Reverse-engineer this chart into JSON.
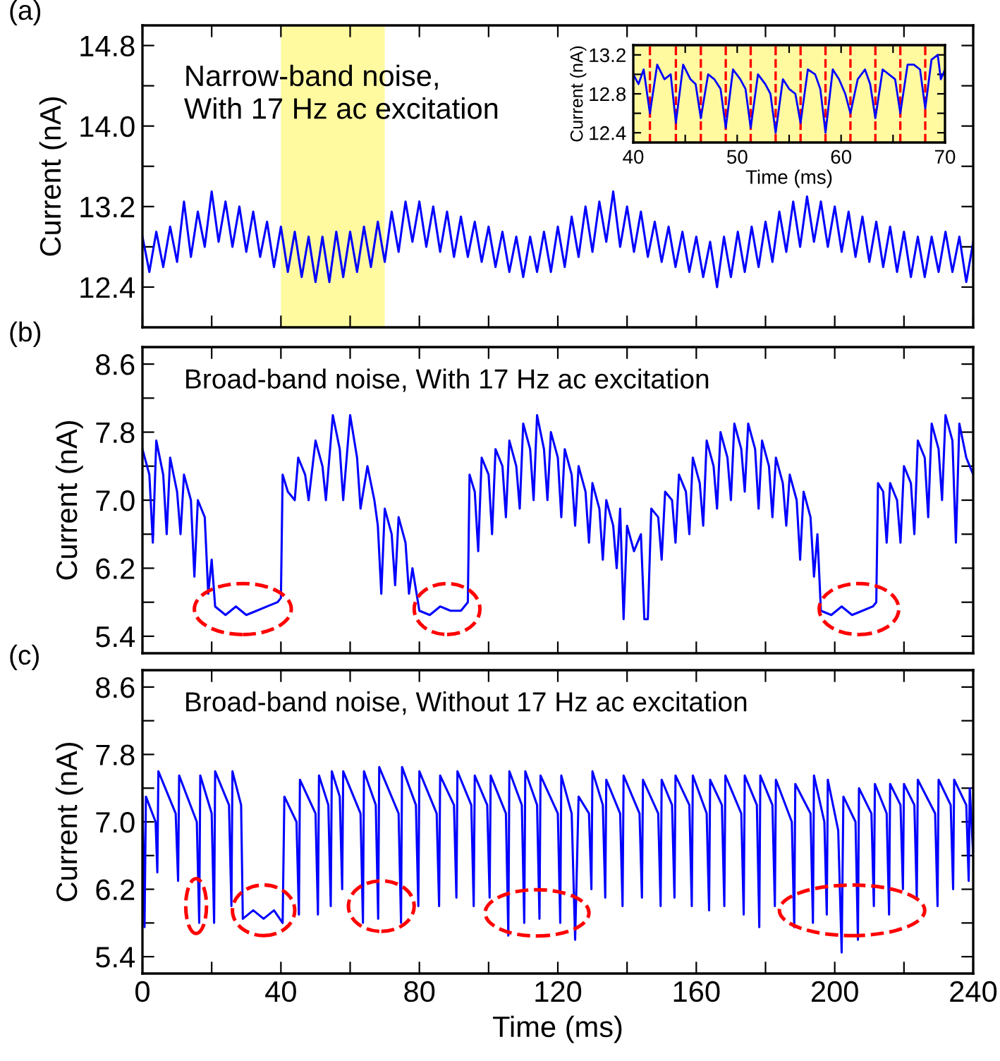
{
  "chart_data": [
    {
      "type": "line",
      "title": "(a)",
      "ylabel": "Current (nA)",
      "annotations": [
        "Narrow-band noise,\nWith 17 Hz ac excitation"
      ],
      "xlim": [
        0,
        240
      ],
      "ylim": [
        12.0,
        15.0
      ],
      "xticks": [
        0,
        20,
        40,
        60,
        80,
        100,
        120,
        140,
        160,
        180,
        200,
        220,
        240
      ],
      "yticks": [
        12.4,
        {
          "value": 12.8,
          "label": null
        },
        13.2,
        {
          "value": 13.6,
          "label": null
        },
        {
          "value": 14.0,
          "label": "14.0"
        },
        {
          "value": 14.4,
          "label": null
        },
        14.8
      ],
      "tick_labels": "y",
      "grid": false,
      "line_style": "solid",
      "marker": "none",
      "bands": [
        {
          "axis": "x",
          "from": 40,
          "to": 70,
          "color": "#fffaa0"
        }
      ],
      "series": [
        {
          "color": "#0000ff",
          "x": [
            0,
            2,
            4,
            6,
            8,
            10,
            12,
            14,
            16,
            18,
            20,
            22,
            24,
            26,
            28,
            30,
            32,
            34,
            36,
            38,
            40,
            42,
            44,
            46,
            48,
            50,
            52,
            54,
            56,
            58,
            60,
            62,
            64,
            66,
            68,
            70,
            72,
            74,
            76,
            78,
            80,
            82,
            84,
            86,
            88,
            90,
            92,
            94,
            96,
            98,
            100,
            102,
            104,
            106,
            108,
            110,
            112,
            114,
            116,
            118,
            120,
            122,
            124,
            126,
            128,
            130,
            132,
            134,
            136,
            138,
            140,
            142,
            144,
            146,
            148,
            150,
            152,
            154,
            156,
            158,
            160,
            162,
            164,
            166,
            168,
            170,
            172,
            174,
            176,
            178,
            180,
            182,
            184,
            186,
            188,
            190,
            192,
            194,
            196,
            198,
            200,
            202,
            204,
            206,
            208,
            210,
            212,
            214,
            216,
            218,
            220,
            222,
            224,
            226,
            228,
            230,
            232,
            234,
            236,
            238,
            240
          ],
          "values": [
            12.9,
            12.55,
            12.95,
            12.6,
            13.0,
            12.65,
            13.25,
            12.7,
            13.15,
            12.8,
            13.35,
            12.85,
            13.25,
            12.8,
            13.2,
            12.75,
            13.15,
            12.7,
            13.05,
            12.6,
            13.0,
            12.55,
            12.95,
            12.5,
            12.9,
            12.45,
            12.9,
            12.45,
            12.95,
            12.5,
            12.95,
            12.55,
            13.0,
            12.6,
            13.05,
            12.65,
            13.15,
            12.75,
            13.25,
            12.85,
            13.25,
            12.8,
            13.2,
            12.75,
            13.15,
            12.7,
            13.1,
            12.7,
            13.05,
            12.65,
            13.0,
            12.6,
            12.95,
            12.55,
            12.9,
            12.5,
            12.9,
            12.55,
            12.95,
            12.55,
            13.0,
            12.6,
            13.1,
            12.7,
            13.2,
            12.75,
            13.25,
            12.85,
            13.35,
            12.8,
            13.2,
            12.75,
            13.15,
            12.7,
            13.05,
            12.65,
            13.0,
            12.6,
            12.95,
            12.55,
            12.9,
            12.5,
            12.85,
            12.4,
            12.9,
            12.5,
            12.95,
            12.55,
            13.0,
            12.6,
            13.05,
            12.65,
            13.15,
            12.75,
            13.25,
            12.8,
            13.3,
            12.85,
            13.25,
            12.8,
            13.2,
            12.75,
            13.15,
            12.7,
            13.1,
            12.65,
            13.05,
            12.6,
            13.0,
            12.55,
            12.95,
            12.5,
            12.9,
            12.5,
            12.9,
            12.55,
            12.95,
            12.55,
            12.9,
            12.45,
            12.85
          ]
        }
      ]
    },
    {
      "type": "line",
      "xlabel": "Time (ms)",
      "ylabel": "Current (nA)",
      "xlim": [
        40,
        70
      ],
      "ylim": [
        12.3,
        13.3
      ],
      "xticks": [
        40,
        {
          "value": 45,
          "label": null
        },
        50,
        {
          "value": 55,
          "label": null
        },
        60,
        {
          "value": 65,
          "label": null
        },
        70
      ],
      "yticks": [
        12.4,
        {
          "value": 12.6,
          "label": null
        },
        12.8,
        {
          "value": 13.0,
          "label": null
        },
        13.2
      ],
      "grid": false,
      "line_style": "solid",
      "marker": "none",
      "bands": [
        {
          "axis": "x",
          "from": 40,
          "to": 70,
          "color": "#fffaa0"
        }
      ],
      "ref_lines": [
        {
          "axis": "x",
          "value": 41.6,
          "color": "#ff0000",
          "line_style": "dashed"
        },
        {
          "axis": "x",
          "value": 44.1,
          "color": "#ff0000",
          "line_style": "dashed"
        },
        {
          "axis": "x",
          "value": 46.5,
          "color": "#ff0000",
          "line_style": "dashed"
        },
        {
          "axis": "x",
          "value": 48.9,
          "color": "#ff0000",
          "line_style": "dashed"
        },
        {
          "axis": "x",
          "value": 51.3,
          "color": "#ff0000",
          "line_style": "dashed"
        },
        {
          "axis": "x",
          "value": 53.7,
          "color": "#ff0000",
          "line_style": "dashed"
        },
        {
          "axis": "x",
          "value": 56.1,
          "color": "#ff0000",
          "line_style": "dashed"
        },
        {
          "axis": "x",
          "value": 58.5,
          "color": "#ff0000",
          "line_style": "dashed"
        },
        {
          "axis": "x",
          "value": 60.9,
          "color": "#ff0000",
          "line_style": "dashed"
        },
        {
          "axis": "x",
          "value": 63.3,
          "color": "#ff0000",
          "line_style": "dashed"
        },
        {
          "axis": "x",
          "value": 65.7,
          "color": "#ff0000",
          "line_style": "dashed"
        },
        {
          "axis": "x",
          "value": 68.1,
          "color": "#ff0000",
          "line_style": "dashed"
        }
      ],
      "series": [
        {
          "color": "#0000ff",
          "x": [
            40,
            40.5,
            41,
            41.6,
            42.3,
            43,
            43.6,
            44.1,
            44.8,
            45.5,
            46,
            46.5,
            47.2,
            47.8,
            48.4,
            48.9,
            49.6,
            50.3,
            50.8,
            51.3,
            52,
            52.7,
            53.2,
            53.7,
            54.4,
            55,
            55.6,
            56.1,
            56.8,
            57.5,
            58,
            58.5,
            59.2,
            59.8,
            60.4,
            60.9,
            61.6,
            62.3,
            62.8,
            63.3,
            64,
            64.6,
            65.2,
            65.7,
            66.4,
            67,
            67.6,
            68.1,
            68.7,
            69.3,
            69.6,
            70
          ],
          "values": [
            13.0,
            12.9,
            13.05,
            12.6,
            13.1,
            12.95,
            13.0,
            12.5,
            13.1,
            12.95,
            12.9,
            12.55,
            13.0,
            12.95,
            12.85,
            12.45,
            13.05,
            12.95,
            12.85,
            12.45,
            13.0,
            12.9,
            12.8,
            12.4,
            12.95,
            12.85,
            12.8,
            12.5,
            13.05,
            13.0,
            12.85,
            12.4,
            13.05,
            12.95,
            12.8,
            12.6,
            12.95,
            13.05,
            12.9,
            12.55,
            13.05,
            13.0,
            12.95,
            12.6,
            13.1,
            13.1,
            13.05,
            12.65,
            13.15,
            13.2,
            12.95,
            13.05
          ]
        }
      ]
    },
    {
      "type": "line",
      "title": "(b)",
      "ylabel": "Current (nA)",
      "annotations": [
        "Broad-band noise, With 17 Hz ac excitation"
      ],
      "xlim": [
        0,
        240
      ],
      "ylim": [
        5.2,
        8.8
      ],
      "xticks": [
        0,
        20,
        40,
        60,
        80,
        100,
        120,
        140,
        160,
        180,
        200,
        220,
        240
      ],
      "yticks": [
        5.4,
        {
          "value": 5.8,
          "label": null
        },
        6.2,
        {
          "value": 6.6,
          "label": null
        },
        {
          "value": 7.0,
          "label": "7.0"
        },
        {
          "value": 7.4,
          "label": null
        },
        7.8,
        {
          "value": 8.2,
          "label": null
        },
        8.6
      ],
      "tick_labels": "y",
      "grid": false,
      "line_style": "solid",
      "marker": "none",
      "series": [
        {
          "color": "#0000ff",
          "x": [
            0,
            2,
            3,
            4,
            6,
            7,
            8,
            10,
            11,
            12,
            14,
            15,
            16,
            18,
            19,
            20,
            21,
            24,
            27,
            30,
            33,
            36,
            39,
            40,
            40.5,
            42,
            44,
            45,
            47,
            48,
            50,
            52,
            53,
            55,
            57,
            58,
            60,
            62,
            63,
            65,
            67,
            68,
            69,
            70,
            72,
            73,
            74,
            76,
            77,
            78,
            80,
            83,
            86,
            89,
            92,
            94,
            94.5,
            96,
            97,
            98,
            100,
            101,
            102,
            104,
            105,
            106,
            108,
            109,
            110,
            112,
            113,
            114,
            116,
            117,
            118,
            120,
            121,
            122,
            124,
            125,
            126,
            128,
            129,
            130,
            132,
            133,
            134,
            136,
            137,
            138,
            139,
            140,
            142,
            144,
            145,
            146,
            147,
            149,
            150,
            151,
            153,
            154,
            155,
            157,
            158,
            159,
            161,
            162,
            163,
            165,
            166,
            167,
            169,
            170,
            171,
            173,
            174,
            175,
            177,
            178,
            179,
            181,
            182,
            183,
            185,
            186,
            187,
            189,
            190,
            191,
            193,
            194,
            195,
            196,
            199,
            202,
            205,
            208,
            211,
            212,
            212.5,
            214,
            215,
            216,
            218,
            219,
            220,
            222,
            223,
            224,
            226,
            227,
            228,
            230,
            231,
            232,
            234,
            235,
            236,
            238,
            240
          ],
          "values": [
            7.6,
            7.3,
            6.5,
            7.7,
            7.3,
            6.6,
            7.5,
            7.1,
            6.6,
            7.3,
            7.0,
            6.1,
            7.0,
            6.8,
            5.9,
            6.3,
            5.75,
            5.65,
            5.75,
            5.65,
            5.7,
            5.75,
            5.8,
            5.85,
            7.3,
            7.1,
            7.0,
            7.5,
            7.3,
            7.0,
            7.7,
            7.4,
            7.0,
            8.0,
            7.6,
            7.0,
            8.0,
            7.5,
            6.9,
            7.4,
            7.0,
            6.7,
            5.9,
            6.9,
            6.6,
            6.0,
            6.8,
            6.5,
            5.9,
            6.2,
            5.7,
            5.65,
            5.75,
            5.7,
            5.7,
            5.8,
            7.3,
            7.1,
            6.4,
            7.5,
            7.3,
            6.6,
            7.6,
            7.4,
            6.8,
            7.7,
            7.4,
            6.9,
            7.9,
            7.6,
            7.0,
            8.0,
            7.6,
            7.0,
            7.8,
            7.5,
            6.8,
            7.6,
            7.3,
            6.7,
            7.4,
            7.1,
            6.5,
            7.2,
            6.9,
            6.3,
            7.0,
            6.7,
            6.2,
            6.9,
            5.6,
            6.7,
            6.4,
            6.6,
            5.6,
            5.6,
            6.9,
            6.8,
            6.3,
            7.1,
            7.0,
            6.5,
            7.3,
            7.1,
            6.6,
            7.5,
            7.2,
            6.7,
            7.7,
            7.4,
            6.9,
            7.8,
            7.5,
            7.0,
            7.9,
            7.6,
            7.1,
            7.9,
            7.6,
            6.9,
            7.7,
            7.4,
            6.8,
            7.5,
            7.2,
            6.7,
            7.3,
            7.0,
            6.3,
            7.1,
            6.8,
            6.1,
            6.6,
            5.7,
            5.65,
            5.75,
            5.65,
            5.7,
            5.75,
            5.8,
            7.2,
            7.1,
            6.5,
            7.2,
            7.0,
            6.5,
            7.4,
            7.2,
            6.6,
            7.7,
            7.5,
            6.8,
            7.9,
            7.6,
            7.0,
            8.0,
            7.7,
            6.5,
            7.9,
            7.5,
            7.3
          ]
        }
      ]
    },
    {
      "type": "line",
      "title": "(c)",
      "xlabel": "Time (ms)",
      "ylabel": "Current (nA)",
      "annotations": [
        "Broad-band noise, Without 17 Hz ac excitation"
      ],
      "xlim": [
        0,
        240
      ],
      "ylim": [
        5.2,
        8.8
      ],
      "xticks": [
        0,
        {
          "value": 20,
          "label": null
        },
        40,
        {
          "value": 60,
          "label": null
        },
        80,
        {
          "value": 100,
          "label": null
        },
        120,
        {
          "value": 140,
          "label": null
        },
        160,
        {
          "value": 180,
          "label": null
        },
        200,
        {
          "value": 220,
          "label": null
        },
        240
      ],
      "yticks": [
        5.4,
        {
          "value": 5.8,
          "label": null
        },
        6.2,
        {
          "value": 6.6,
          "label": null
        },
        {
          "value": 7.0,
          "label": "7.0"
        },
        {
          "value": 7.4,
          "label": null
        },
        7.8,
        {
          "value": 8.2,
          "label": null
        },
        8.6
      ],
      "grid": false,
      "line_style": "solid",
      "marker": "none",
      "series": [
        {
          "color": "#0000ff",
          "x": [
            0,
            0.6,
            1,
            3.8,
            4.3,
            4.6,
            9.6,
            10.3,
            10.6,
            15.7,
            16.4,
            16.7,
            20,
            20.7,
            21,
            25,
            25.7,
            26,
            28.5,
            29,
            32,
            35,
            38,
            40.5,
            41,
            44.5,
            45.2,
            45.5,
            50,
            50.7,
            51,
            53.7,
            54.4,
            54.7,
            57,
            57.7,
            58,
            63,
            63.7,
            64,
            67.4,
            68.1,
            68.4,
            74,
            74.7,
            75,
            79,
            79.7,
            80,
            85,
            85.7,
            86,
            90,
            90.7,
            91,
            95,
            95.7,
            96,
            99.6,
            100.3,
            100.6,
            105,
            105.7,
            106,
            109.6,
            110.3,
            110.6,
            114,
            114.7,
            115,
            120,
            120.7,
            121,
            124,
            125,
            126,
            129,
            129.7,
            130,
            133,
            133.7,
            134,
            138,
            138.7,
            139,
            143.6,
            144.3,
            144.6,
            149,
            149.7,
            150,
            153,
            153.7,
            154,
            158,
            158.7,
            159,
            163,
            163.7,
            164,
            167.4,
            168.1,
            168.4,
            173,
            173.7,
            174,
            177.5,
            178.2,
            178.5,
            182,
            182.7,
            183,
            187.6,
            188.3,
            188.6,
            193,
            193.7,
            194,
            197,
            197.7,
            198,
            201,
            202,
            202.5,
            206,
            206.7,
            207,
            210.6,
            211.3,
            211.6,
            215,
            215.7,
            216,
            219,
            219.7,
            220,
            223,
            223.7,
            224,
            229,
            229.7,
            230,
            233.5,
            234.2,
            234.5,
            238,
            238.7,
            239,
            240
          ],
          "values": [
            7.3,
            5.75,
            7.3,
            7.0,
            6.4,
            7.6,
            7.1,
            6.3,
            7.55,
            7.0,
            5.8,
            7.55,
            7.1,
            5.8,
            7.6,
            7.2,
            6.0,
            7.6,
            7.2,
            5.85,
            5.95,
            5.85,
            5.95,
            5.8,
            7.3,
            7.0,
            5.9,
            7.5,
            7.1,
            5.9,
            7.55,
            7.2,
            6.0,
            7.6,
            7.3,
            6.2,
            7.6,
            7.1,
            5.8,
            7.6,
            7.2,
            5.85,
            7.65,
            7.1,
            5.8,
            7.65,
            7.2,
            6.0,
            7.6,
            7.1,
            6.0,
            7.55,
            7.2,
            6.1,
            7.6,
            7.2,
            6.0,
            7.55,
            7.2,
            6.1,
            7.55,
            7.1,
            5.65,
            7.6,
            7.2,
            5.8,
            7.6,
            7.2,
            5.85,
            7.55,
            7.1,
            5.8,
            7.55,
            7.1,
            5.6,
            7.3,
            7.1,
            6.2,
            7.6,
            7.2,
            6.1,
            7.5,
            7.1,
            6.0,
            7.55,
            7.1,
            6.1,
            7.5,
            7.1,
            6.0,
            7.5,
            7.2,
            6.1,
            7.55,
            7.2,
            6.0,
            7.55,
            7.1,
            5.95,
            7.5,
            7.2,
            6.0,
            7.55,
            7.1,
            5.9,
            7.55,
            7.2,
            5.75,
            7.55,
            7.2,
            6.0,
            7.5,
            7.0,
            5.75,
            7.45,
            7.1,
            5.8,
            7.55,
            7.0,
            5.9,
            7.5,
            6.9,
            5.45,
            7.3,
            7.0,
            5.6,
            7.4,
            7.1,
            6.0,
            7.45,
            7.1,
            5.9,
            7.45,
            7.2,
            6.2,
            7.45,
            7.2,
            6.1,
            7.5,
            7.1,
            6.0,
            7.5,
            7.2,
            6.2,
            7.5,
            7.2,
            6.3,
            7.4,
            6.6
          ]
        }
      ]
    }
  ]
}
